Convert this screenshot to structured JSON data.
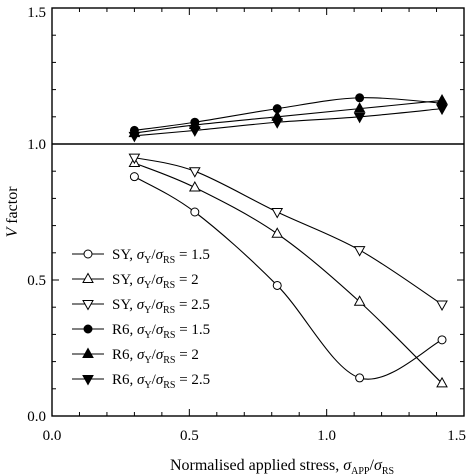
{
  "chart_data": {
    "type": "line",
    "xlabel": {
      "prefix": "Normalised applied stress, ",
      "sym1": "σ",
      "sub1": "APP",
      "slash": "/",
      "sym2": "σ",
      "sub2": "RS"
    },
    "ylabel": {
      "sym": "V",
      "text": " factor"
    },
    "xlim": [
      0.0,
      1.5
    ],
    "ylim": [
      0.0,
      1.5
    ],
    "xticks": [
      "0.0",
      "0.5",
      "1.0",
      "1.5"
    ],
    "yticks": [
      "0.0",
      "0.5",
      "1.0",
      "1.5"
    ],
    "reference_line_y": 1.0,
    "legend_position": "bottom-left",
    "series": [
      {
        "name": {
          "prefix": "SY, ",
          "sub1": "Y",
          "sub2": "RS",
          "value": " = 1.5"
        },
        "marker": "circle-open",
        "x": [
          0.3,
          0.52,
          0.82,
          1.12,
          1.42
        ],
        "y": [
          0.88,
          0.75,
          0.48,
          0.14,
          0.28
        ]
      },
      {
        "name": {
          "prefix": "SY, ",
          "sub1": "Y",
          "sub2": "RS",
          "value": " = 2"
        },
        "marker": "triangle-up-open",
        "x": [
          0.3,
          0.52,
          0.82,
          1.12,
          1.42
        ],
        "y": [
          0.93,
          0.84,
          0.67,
          0.42,
          0.12
        ]
      },
      {
        "name": {
          "prefix": "SY, ",
          "sub1": "Y",
          "sub2": "RS",
          "value": " = 2.5"
        },
        "marker": "triangle-down-open",
        "x": [
          0.3,
          0.52,
          0.82,
          1.12,
          1.42
        ],
        "y": [
          0.95,
          0.9,
          0.75,
          0.61,
          0.41
        ]
      },
      {
        "name": {
          "prefix": "R6, ",
          "sub1": "Y",
          "sub2": "RS",
          "value": " = 1.5"
        },
        "marker": "circle-filled",
        "x": [
          0.3,
          0.52,
          0.82,
          1.12,
          1.42
        ],
        "y": [
          1.05,
          1.08,
          1.13,
          1.17,
          1.15
        ]
      },
      {
        "name": {
          "prefix": "R6, ",
          "sub1": "Y",
          "sub2": "RS",
          "value": " = 2"
        },
        "marker": "triangle-up-filled",
        "x": [
          0.3,
          0.52,
          0.82,
          1.12,
          1.42
        ],
        "y": [
          1.04,
          1.07,
          1.1,
          1.13,
          1.16
        ]
      },
      {
        "name": {
          "prefix": "R6, ",
          "sub1": "Y",
          "sub2": "RS",
          "value": " = 2.5"
        },
        "marker": "triangle-down-filled",
        "x": [
          0.3,
          0.52,
          0.82,
          1.12,
          1.42
        ],
        "y": [
          1.03,
          1.05,
          1.08,
          1.1,
          1.13
        ]
      }
    ],
    "colors": {
      "line": "#000000",
      "background": "#ffffff"
    }
  }
}
